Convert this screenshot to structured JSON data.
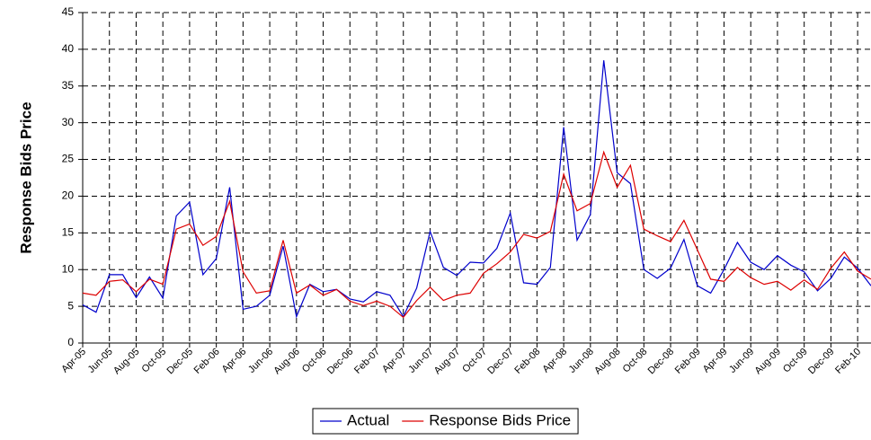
{
  "chart_data": {
    "type": "line",
    "y_label": "Response Bids Price",
    "categories": [
      "Apr-05",
      null,
      "Jun-05",
      null,
      "Aug-05",
      null,
      "Oct-05",
      null,
      "Dec-05",
      null,
      "Feb-06",
      null,
      "Apr-06",
      null,
      "Jun-06",
      null,
      "Aug-06",
      null,
      "Oct-06",
      null,
      "Dec-06",
      null,
      "Feb-07",
      null,
      "Apr-07",
      null,
      "Jun-07",
      null,
      "Aug-07",
      null,
      "Oct-07",
      null,
      "Dec-07",
      null,
      "Feb-08",
      null,
      "Apr-08",
      null,
      "Jun-08",
      null,
      "Aug-08",
      null,
      "Oct-08",
      null,
      "Dec-08",
      null,
      "Feb-09",
      null,
      "Apr-09",
      null,
      "Jun-09",
      null,
      "Aug-09",
      null,
      "Oct-09",
      null,
      "Dec-09",
      null,
      "Feb-10",
      null
    ],
    "series": [
      {
        "name": "Actual",
        "color": "#0000cc",
        "values": [
          5.2,
          4.2,
          9.3,
          9.3,
          6.2,
          9.0,
          6.1,
          17.3,
          19.2,
          9.3,
          11.5,
          21.2,
          4.6,
          5.0,
          6.5,
          13.2,
          3.6,
          8.0,
          7.0,
          7.3,
          6.0,
          5.6,
          7.0,
          6.5,
          3.6,
          7.5,
          15.2,
          10.3,
          9.2,
          11.0,
          10.9,
          12.9,
          17.7,
          8.2,
          8.0,
          10.3,
          29.4,
          14.0,
          17.5,
          38.5,
          23.2,
          21.7,
          10.0,
          8.8,
          10.2,
          14.1,
          7.8,
          6.8,
          10.0,
          13.7,
          11.0,
          10.0,
          11.9,
          10.6,
          9.7,
          7.1,
          8.8,
          11.7,
          10.2,
          7.8
        ]
      },
      {
        "name": "Response Bids Price",
        "color": "#dd0000",
        "values": [
          6.8,
          6.5,
          8.4,
          8.6,
          7.0,
          8.7,
          8.0,
          15.5,
          16.2,
          13.3,
          14.5,
          19.3,
          9.7,
          6.8,
          7.1,
          14.0,
          6.8,
          7.9,
          6.5,
          7.3,
          5.7,
          5.1,
          5.7,
          5.0,
          3.5,
          5.8,
          7.6,
          5.8,
          6.5,
          6.8,
          9.5,
          10.8,
          12.4,
          14.8,
          14.3,
          15.2,
          23.0,
          18.0,
          19.0,
          26.0,
          21.2,
          24.2,
          15.5,
          14.6,
          13.8,
          16.7,
          12.7,
          8.7,
          8.4,
          10.3,
          8.9,
          8.0,
          8.4,
          7.2,
          8.6,
          7.3,
          10.2,
          12.4,
          9.8,
          8.7
        ]
      }
    ],
    "ylim": [
      0,
      45
    ],
    "yticks": [
      0,
      5,
      10,
      15,
      20,
      25,
      30,
      35,
      40,
      45
    ],
    "grid": true,
    "legend": "bottom"
  }
}
